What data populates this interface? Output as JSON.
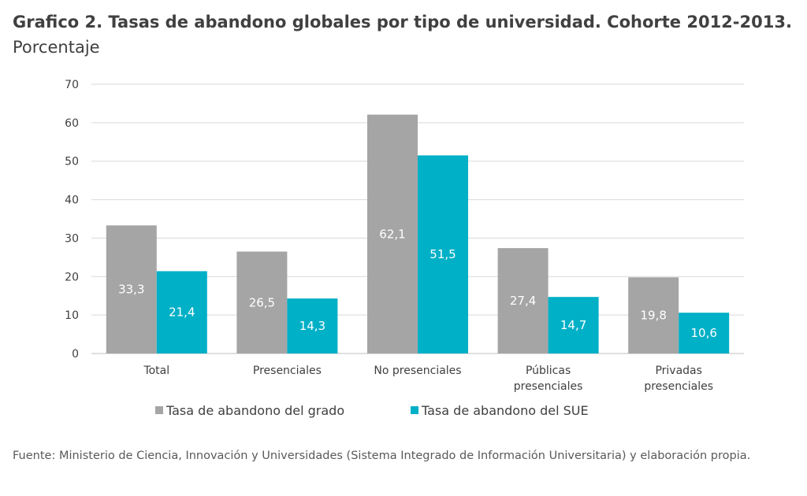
{
  "title": {
    "bold": "Grafico 2. Tasas de abandono globales por tipo de universidad. Cohorte 2012-2013.",
    "suffix": "Porcentaje"
  },
  "source": "Fuente: Ministerio de Ciencia, Innovación y Universidades (Sistema Integrado de Información Universitaria) y elaboración propia.",
  "chart_data": {
    "type": "bar",
    "categories": [
      [
        "Total"
      ],
      [
        "Presenciales"
      ],
      [
        "No presenciales"
      ],
      [
        "Públicas",
        "presenciales"
      ],
      [
        "Privadas",
        "presenciales"
      ]
    ],
    "series": [
      {
        "name": "Tasa de abandono del grado",
        "color": "#a5a5a5",
        "values": [
          33.3,
          26.5,
          62.1,
          27.4,
          19.8
        ],
        "labels": [
          "33,3",
          "26,5",
          "62,1",
          "27,4",
          "19,8"
        ]
      },
      {
        "name": "Tasa de abandono del SUE",
        "color": "#00b0c7",
        "values": [
          21.4,
          14.3,
          51.5,
          14.7,
          10.6
        ],
        "labels": [
          "21,4",
          "14,3",
          "51,5",
          "14,7",
          "10,6"
        ]
      }
    ],
    "ylim": [
      0,
      70
    ],
    "yticks": [
      "0",
      "10",
      "20",
      "30",
      "40",
      "50",
      "60",
      "70"
    ],
    "grid": true,
    "legend": "bottom"
  }
}
